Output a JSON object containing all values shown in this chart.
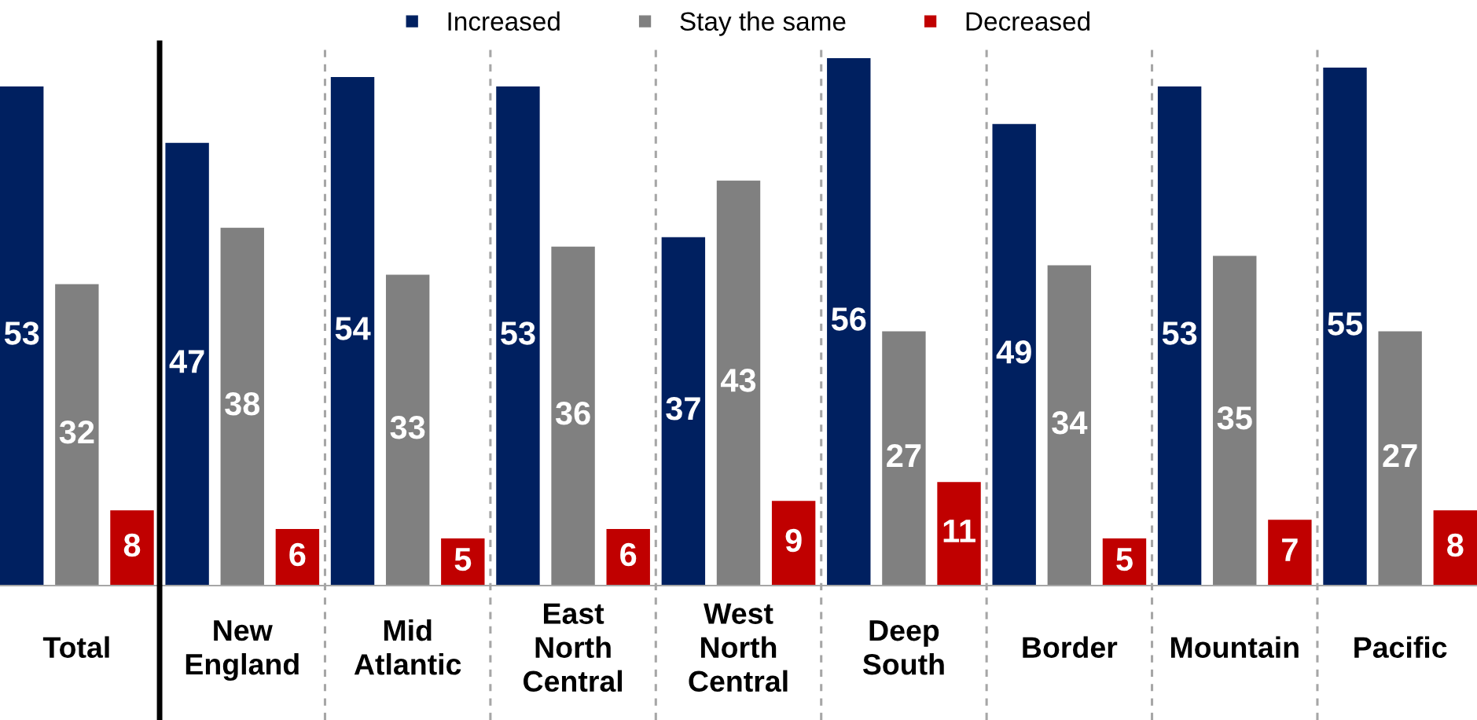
{
  "chart_data": [
    {
      "type": "bar",
      "categories": [
        "Total"
      ],
      "series": [
        {
          "color": "#002060",
          "values": [
            53
          ]
        },
        {
          "color": "#808080",
          "values": [
            32
          ]
        },
        {
          "color": "#c00000",
          "values": [
            8
          ]
        }
      ],
      "data_labels": true
    },
    {
      "type": "bar",
      "categories": [
        "New\nEngland",
        "Mid\nAtlantic",
        "East\nNorth\nCentral",
        "West\nNorth\nCentral",
        "Deep\nSouth",
        "Border",
        "Mountain",
        "Pacific"
      ],
      "series": [
        {
          "name": "Increased",
          "color": "#002060",
          "values": [
            47,
            54,
            53,
            37,
            56,
            49,
            53,
            55
          ]
        },
        {
          "name": "Stay the same",
          "color": "#808080",
          "values": [
            38,
            33,
            36,
            43,
            27,
            34,
            35,
            27
          ]
        },
        {
          "name": "Decreased",
          "color": "#c00000",
          "values": [
            6,
            5,
            6,
            9,
            11,
            5,
            7,
            8
          ]
        }
      ],
      "data_labels": true,
      "legend": "top"
    }
  ]
}
